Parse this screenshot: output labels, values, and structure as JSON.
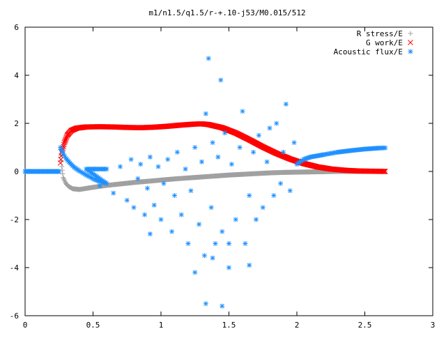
{
  "chart_data": {
    "type": "scatter",
    "title": "m1/n1.5/q1.5/r-+.10-j53/M0.015/512",
    "xlabel": "",
    "ylabel": "",
    "xlim": [
      0,
      3
    ],
    "ylim": [
      -6,
      6
    ],
    "x_ticks": [
      "0",
      "0.5",
      "1",
      "1.5",
      "2",
      "2.5",
      "3"
    ],
    "y_ticks": [
      "6",
      "4",
      "2",
      "0",
      "-2",
      "-4",
      "-6"
    ],
    "grid": false,
    "legend_position": "top-right",
    "series": [
      {
        "name": "R stress/E",
        "color": "#a0a0a0",
        "marker": "plus",
        "points": [
          [
            0.26,
            0.9
          ],
          [
            0.27,
            0.2
          ],
          [
            0.28,
            -0.25
          ],
          [
            0.3,
            -0.5
          ],
          [
            0.32,
            -0.62
          ],
          [
            0.35,
            -0.72
          ],
          [
            0.4,
            -0.75
          ],
          [
            0.5,
            -0.66
          ],
          [
            0.6,
            -0.58
          ],
          [
            0.7,
            -0.52
          ],
          [
            0.8,
            -0.46
          ],
          [
            0.9,
            -0.41
          ],
          [
            1.0,
            -0.36
          ],
          [
            1.1,
            -0.31
          ],
          [
            1.2,
            -0.27
          ],
          [
            1.3,
            -0.23
          ],
          [
            1.4,
            -0.19
          ],
          [
            1.5,
            -0.15
          ],
          [
            1.6,
            -0.12
          ],
          [
            1.7,
            -0.09
          ],
          [
            1.8,
            -0.06
          ],
          [
            1.9,
            -0.04
          ],
          [
            2.0,
            -0.03
          ],
          [
            2.1,
            -0.02
          ],
          [
            2.2,
            -0.01
          ],
          [
            2.3,
            0.0
          ],
          [
            2.4,
            0.0
          ],
          [
            2.5,
            0.0
          ],
          [
            2.65,
            0.0
          ]
        ]
      },
      {
        "name": "G work/E",
        "color": "#ff0000",
        "marker": "cross",
        "points": [
          [
            0.26,
            0.35
          ],
          [
            0.27,
            0.8
          ],
          [
            0.29,
            1.2
          ],
          [
            0.31,
            1.5
          ],
          [
            0.34,
            1.7
          ],
          [
            0.38,
            1.8
          ],
          [
            0.45,
            1.85
          ],
          [
            0.55,
            1.86
          ],
          [
            0.65,
            1.85
          ],
          [
            0.75,
            1.83
          ],
          [
            0.85,
            1.82
          ],
          [
            0.95,
            1.84
          ],
          [
            1.05,
            1.88
          ],
          [
            1.15,
            1.93
          ],
          [
            1.25,
            1.97
          ],
          [
            1.3,
            1.98
          ],
          [
            1.35,
            1.95
          ],
          [
            1.45,
            1.82
          ],
          [
            1.55,
            1.6
          ],
          [
            1.65,
            1.32
          ],
          [
            1.75,
            1.02
          ],
          [
            1.85,
            0.75
          ],
          [
            1.95,
            0.52
          ],
          [
            2.05,
            0.33
          ],
          [
            2.15,
            0.19
          ],
          [
            2.25,
            0.1
          ],
          [
            2.35,
            0.05
          ],
          [
            2.45,
            0.02
          ],
          [
            2.55,
            0.01
          ],
          [
            2.65,
            0.0
          ]
        ]
      },
      {
        "name": "Acoustic flux/E",
        "color": "#1e90ff",
        "marker": "star",
        "points": [
          [
            0.0,
            0.0
          ],
          [
            0.05,
            0.0
          ],
          [
            0.1,
            0.0
          ],
          [
            0.15,
            0.0
          ],
          [
            0.2,
            0.0
          ],
          [
            0.25,
            0.0
          ],
          [
            0.26,
            1.0
          ],
          [
            0.28,
            0.75
          ],
          [
            0.3,
            0.55
          ],
          [
            0.33,
            0.35
          ],
          [
            0.36,
            0.18
          ],
          [
            0.4,
            0.02
          ],
          [
            0.45,
            -0.15
          ],
          [
            0.5,
            -0.3
          ],
          [
            0.55,
            -0.42
          ],
          [
            0.6,
            -0.5
          ],
          [
            2.0,
            0.3
          ],
          [
            2.05,
            0.5
          ],
          [
            2.1,
            0.6
          ],
          [
            2.2,
            0.7
          ],
          [
            2.3,
            0.8
          ],
          [
            2.4,
            0.87
          ],
          [
            2.5,
            0.93
          ],
          [
            2.6,
            0.97
          ],
          [
            2.65,
            0.98
          ],
          [
            0.45,
            0.1
          ],
          [
            0.55,
            -0.6
          ],
          [
            0.6,
            0.1
          ],
          [
            0.65,
            -0.9
          ],
          [
            0.7,
            0.2
          ],
          [
            0.75,
            -1.2
          ],
          [
            0.78,
            0.5
          ],
          [
            0.8,
            -1.5
          ],
          [
            0.83,
            -0.3
          ],
          [
            0.85,
            0.3
          ],
          [
            0.88,
            -1.8
          ],
          [
            0.9,
            -0.7
          ],
          [
            0.92,
            0.6
          ],
          [
            0.95,
            -1.4
          ],
          [
            0.98,
            0.2
          ],
          [
            1.0,
            -2.0
          ],
          [
            1.02,
            -0.5
          ],
          [
            1.05,
            0.5
          ],
          [
            1.08,
            -2.5
          ],
          [
            1.1,
            -1.0
          ],
          [
            1.12,
            0.8
          ],
          [
            1.15,
            -1.8
          ],
          [
            1.18,
            0.1
          ],
          [
            1.2,
            -3.0
          ],
          [
            1.22,
            -0.8
          ],
          [
            1.25,
            1.0
          ],
          [
            1.28,
            -2.2
          ],
          [
            1.3,
            0.4
          ],
          [
            1.32,
            -3.5
          ],
          [
            1.33,
            2.4
          ],
          [
            1.35,
            4.7
          ],
          [
            1.37,
            -1.5
          ],
          [
            1.38,
            1.2
          ],
          [
            1.4,
            -3.0
          ],
          [
            1.42,
            0.6
          ],
          [
            1.44,
            3.8
          ],
          [
            1.45,
            -2.5
          ],
          [
            1.47,
            1.6
          ],
          [
            1.5,
            -4.0
          ],
          [
            1.52,
            0.3
          ],
          [
            1.55,
            -2.0
          ],
          [
            1.58,
            1.0
          ],
          [
            1.6,
            2.5
          ],
          [
            1.62,
            -3.0
          ],
          [
            1.65,
            -1.0
          ],
          [
            1.68,
            0.8
          ],
          [
            1.7,
            -2.0
          ],
          [
            1.72,
            1.5
          ],
          [
            1.75,
            -1.5
          ],
          [
            1.78,
            0.4
          ],
          [
            1.8,
            1.8
          ],
          [
            1.83,
            -1.0
          ],
          [
            1.85,
            2.0
          ],
          [
            1.88,
            -0.5
          ],
          [
            1.9,
            0.8
          ],
          [
            1.92,
            2.8
          ],
          [
            1.95,
            -0.8
          ],
          [
            1.98,
            1.2
          ],
          [
            1.33,
            -5.5
          ],
          [
            1.45,
            -5.6
          ],
          [
            1.25,
            -4.2
          ],
          [
            1.65,
            -3.9
          ],
          [
            1.5,
            -3.0
          ],
          [
            1.38,
            -3.6
          ],
          [
            0.92,
            -2.6
          ]
        ]
      }
    ]
  }
}
